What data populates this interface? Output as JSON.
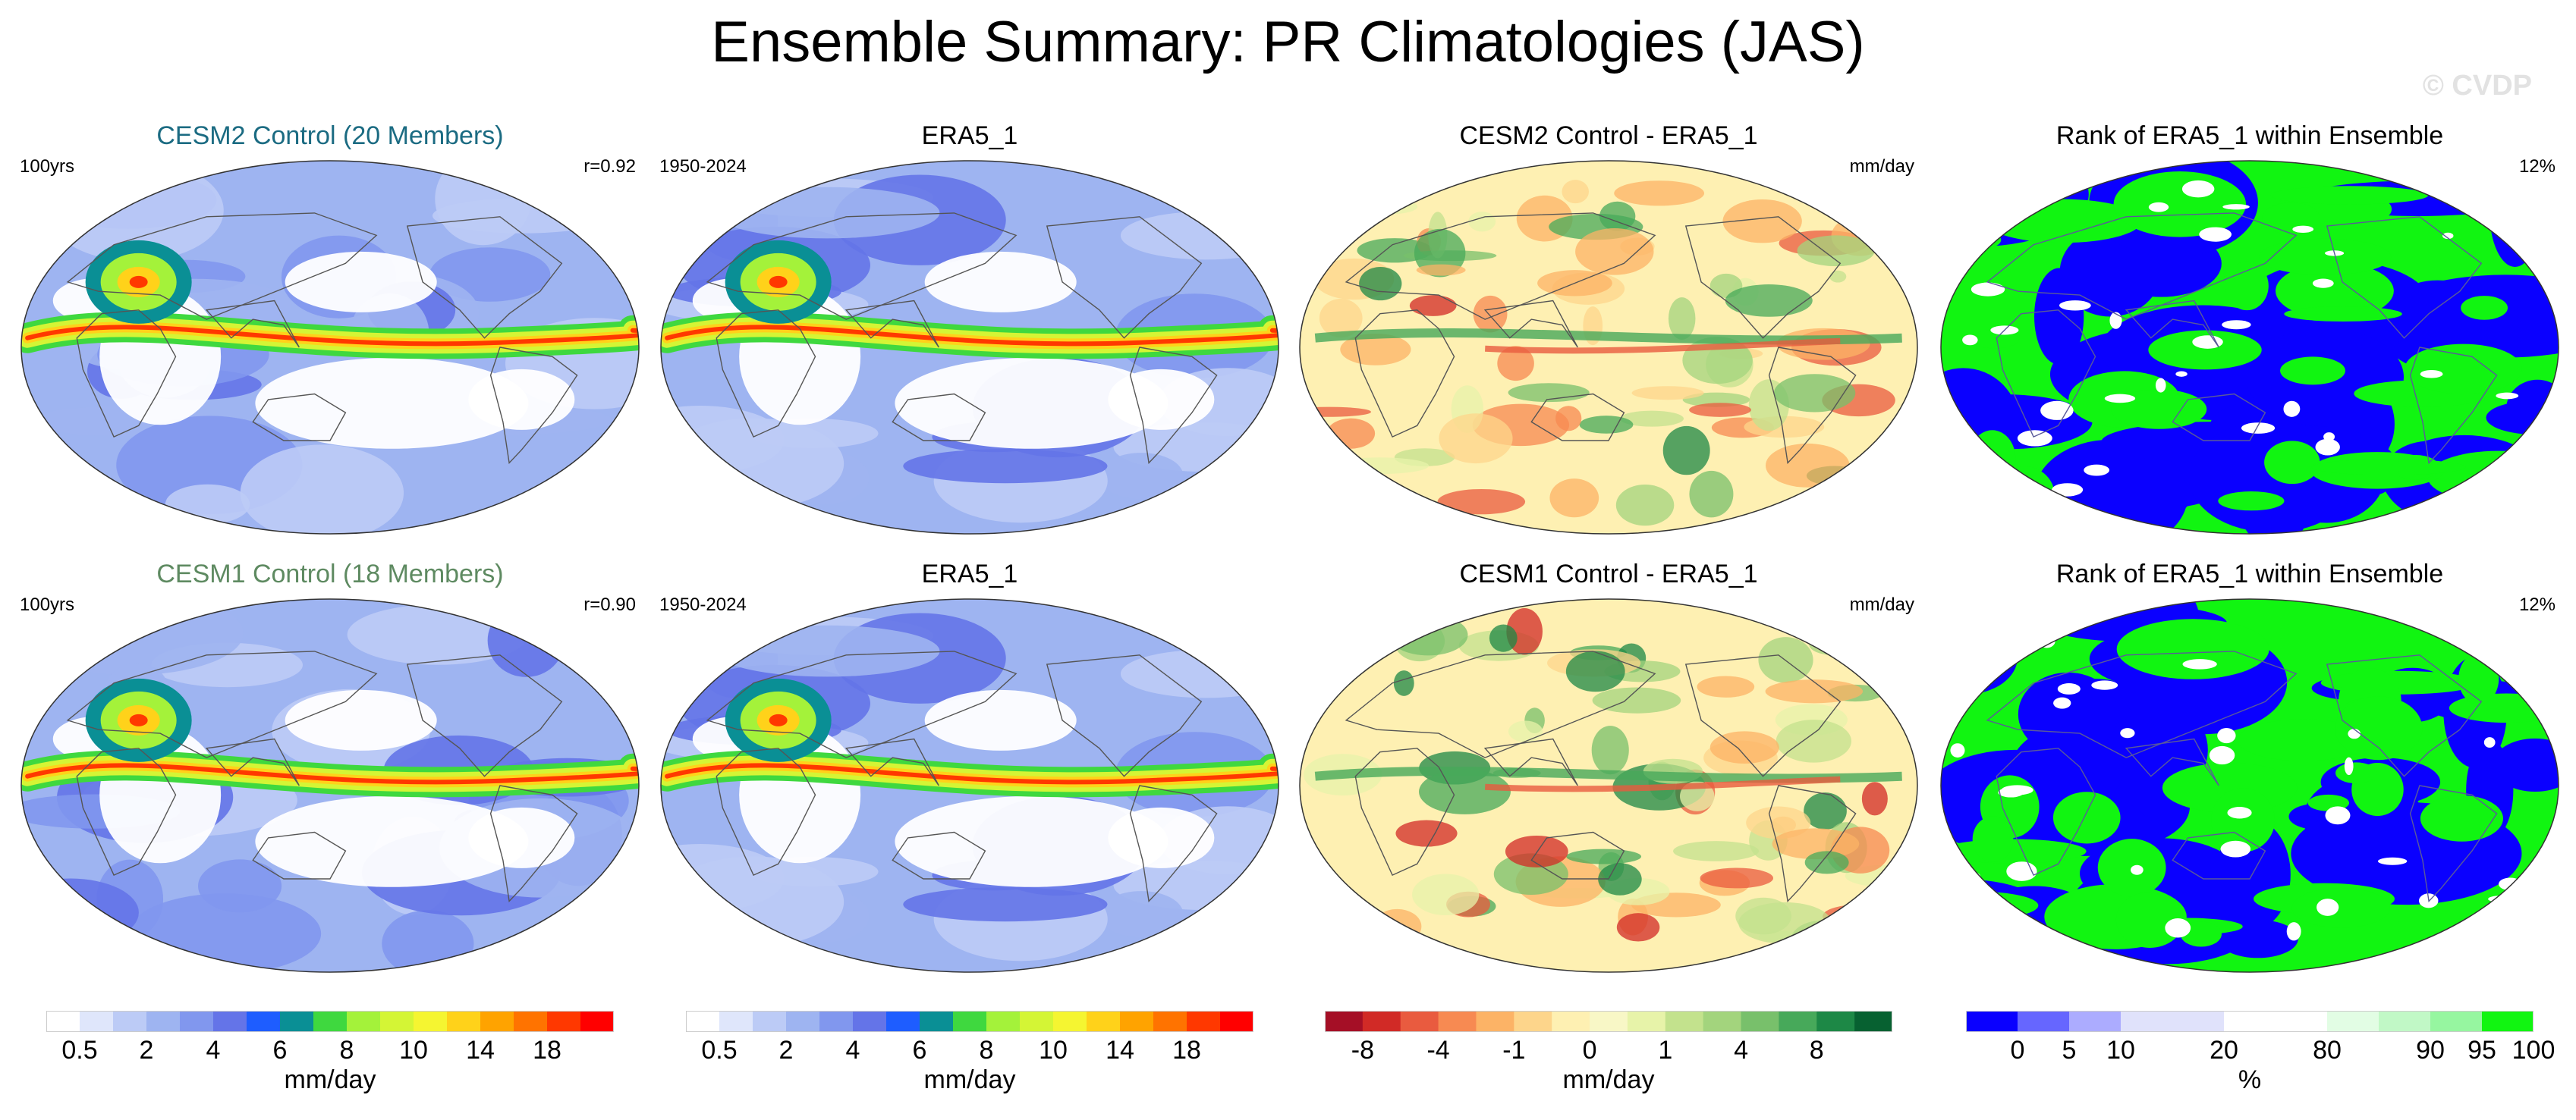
{
  "title": "Ensemble Summary: PR Climatologies (JAS)",
  "watermark": "© CVDP",
  "rows": [
    {
      "panels": [
        {
          "title": "CESM2 Control (20 Members)",
          "title_color": "#1b6b82",
          "left": "100yrs",
          "right": "r=0.92",
          "kind": "clim",
          "variant": 0
        },
        {
          "title": "ERA5_1",
          "title_color": "#000000",
          "left": "1950-2024",
          "right": "",
          "kind": "clim",
          "variant": 1
        },
        {
          "title": "CESM2 Control - ERA5_1",
          "title_color": "#000000",
          "left": "",
          "right": "mm/day",
          "kind": "diff",
          "variant": 0
        },
        {
          "title": "Rank of ERA5_1 within Ensemble",
          "title_color": "#000000",
          "left": "",
          "right": "12%",
          "kind": "rank",
          "variant": 0
        }
      ]
    },
    {
      "panels": [
        {
          "title": "CESM1 Control (18 Members)",
          "title_color": "#5e8a61",
          "left": "100yrs",
          "right": "r=0.90",
          "kind": "clim",
          "variant": 2
        },
        {
          "title": "ERA5_1",
          "title_color": "#000000",
          "left": "1950-2024",
          "right": "",
          "kind": "clim",
          "variant": 1
        },
        {
          "title": "CESM1 Control - ERA5_1",
          "title_color": "#000000",
          "left": "",
          "right": "mm/day",
          "kind": "diff",
          "variant": 1
        },
        {
          "title": "Rank of ERA5_1 within Ensemble",
          "title_color": "#000000",
          "left": "",
          "right": "12%",
          "kind": "rank",
          "variant": 1
        }
      ]
    }
  ],
  "colorbars": [
    {
      "unit": "mm/day",
      "colors": [
        "#ffffff",
        "#dfe6fb",
        "#bccbf6",
        "#9eb4f1",
        "#8197ee",
        "#6474e8",
        "#1e5dff",
        "#0a8f95",
        "#3fd83f",
        "#a4f23a",
        "#d4f535",
        "#f5f531",
        "#ffd21a",
        "#ffa300",
        "#ff7300",
        "#ff3800",
        "#ff0000"
      ],
      "ticks": [
        {
          "label": "0.5",
          "index": 1
        },
        {
          "label": "2",
          "index": 3
        },
        {
          "label": "4",
          "index": 5
        },
        {
          "label": "6",
          "index": 7
        },
        {
          "label": "8",
          "index": 9
        },
        {
          "label": "10",
          "index": 11
        },
        {
          "label": "14",
          "index": 13
        },
        {
          "label": "18",
          "index": 15
        }
      ]
    },
    {
      "unit": "mm/day",
      "colors": [
        "#ffffff",
        "#dfe6fb",
        "#bccbf6",
        "#9eb4f1",
        "#8197ee",
        "#6474e8",
        "#1e5dff",
        "#0a8f95",
        "#3fd83f",
        "#a4f23a",
        "#d4f535",
        "#f5f531",
        "#ffd21a",
        "#ffa300",
        "#ff7300",
        "#ff3800",
        "#ff0000"
      ],
      "ticks": [
        {
          "label": "0.5",
          "index": 1
        },
        {
          "label": "2",
          "index": 3
        },
        {
          "label": "4",
          "index": 5
        },
        {
          "label": "6",
          "index": 7
        },
        {
          "label": "8",
          "index": 9
        },
        {
          "label": "10",
          "index": 11
        },
        {
          "label": "14",
          "index": 13
        },
        {
          "label": "18",
          "index": 15
        }
      ]
    },
    {
      "unit": "mm/day",
      "colors": [
        "#a50f26",
        "#d12a26",
        "#e95b3f",
        "#f78a52",
        "#fcb366",
        "#fdd58b",
        "#fef0b2",
        "#f8f7c6",
        "#e7f3a9",
        "#c3e28d",
        "#a3d47d",
        "#78c06b",
        "#47a95a",
        "#1d8846",
        "#076131"
      ],
      "ticks": [
        {
          "label": "-8",
          "index": 1
        },
        {
          "label": "-4",
          "index": 3
        },
        {
          "label": "-1",
          "index": 5
        },
        {
          "label": "0",
          "index": 7
        },
        {
          "label": "1",
          "index": 9
        },
        {
          "label": "4",
          "index": 11
        },
        {
          "label": "8",
          "index": 13
        }
      ]
    },
    {
      "unit": "%",
      "colors": [
        "#0a00ff",
        "#6666ff",
        "#acacff",
        "#e0e2fb",
        "#e0e2fb",
        "#ffffff",
        "#ffffff",
        "#e2fde4",
        "#c1f8c6",
        "#96f6a0",
        "#11f511"
      ],
      "ticks": [
        {
          "label": "0",
          "index": 1
        },
        {
          "label": "5",
          "index": 2
        },
        {
          "label": "10",
          "index": 3
        },
        {
          "label": "20",
          "index": 5
        },
        {
          "label": "80",
          "index": 7
        },
        {
          "label": "90",
          "index": 9
        },
        {
          "label": "95",
          "index": 10
        },
        {
          "label": "100",
          "index": 11
        }
      ]
    }
  ],
  "chart_data": [
    {
      "type": "heatmap",
      "title": "CESM2 Control (20 Members)",
      "subtitle_left": "100yrs",
      "subtitle_right": "r=0.92",
      "colorbar": "mm/day",
      "levels": [
        0.5,
        1,
        2,
        3,
        4,
        5,
        6,
        7,
        8,
        9,
        10,
        12,
        14,
        16,
        18
      ]
    },
    {
      "type": "heatmap",
      "title": "ERA5_1",
      "subtitle_left": "1950-2024",
      "colorbar": "mm/day",
      "levels": [
        0.5,
        1,
        2,
        3,
        4,
        5,
        6,
        7,
        8,
        9,
        10,
        12,
        14,
        16,
        18
      ]
    },
    {
      "type": "heatmap",
      "title": "CESM2 Control - ERA5_1",
      "subtitle_right": "mm/day",
      "colorbar": "mm/day",
      "levels": [
        -8,
        -6,
        -4,
        -2,
        -1,
        -0.5,
        0,
        0.5,
        1,
        2,
        4,
        6,
        8
      ]
    },
    {
      "type": "heatmap",
      "title": "Rank of ERA5_1 within Ensemble",
      "subtitle_right": "12%",
      "colorbar": "%",
      "levels": [
        0,
        5,
        10,
        20,
        80,
        90,
        95,
        100
      ]
    },
    {
      "type": "heatmap",
      "title": "CESM1 Control (18 Members)",
      "subtitle_left": "100yrs",
      "subtitle_right": "r=0.90",
      "colorbar": "mm/day",
      "levels": [
        0.5,
        1,
        2,
        3,
        4,
        5,
        6,
        7,
        8,
        9,
        10,
        12,
        14,
        16,
        18
      ]
    },
    {
      "type": "heatmap",
      "title": "ERA5_1",
      "subtitle_left": "1950-2024",
      "colorbar": "mm/day",
      "levels": [
        0.5,
        1,
        2,
        3,
        4,
        5,
        6,
        7,
        8,
        9,
        10,
        12,
        14,
        16,
        18
      ]
    },
    {
      "type": "heatmap",
      "title": "CESM1 Control - ERA5_1",
      "subtitle_right": "mm/day",
      "colorbar": "mm/day",
      "levels": [
        -8,
        -6,
        -4,
        -2,
        -1,
        -0.5,
        0,
        0.5,
        1,
        2,
        4,
        6,
        8
      ]
    },
    {
      "type": "heatmap",
      "title": "Rank of ERA5_1 within Ensemble",
      "subtitle_right": "12%",
      "colorbar": "%",
      "levels": [
        0,
        5,
        10,
        20,
        80,
        90,
        95,
        100
      ]
    }
  ]
}
